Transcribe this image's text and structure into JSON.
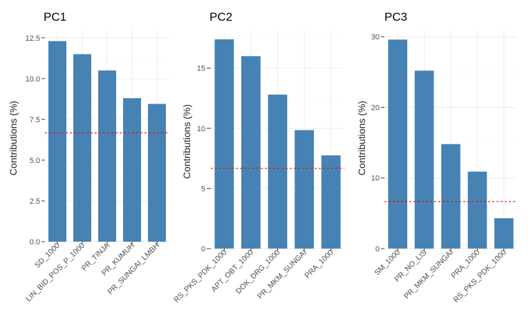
{
  "chart_data": [
    {
      "type": "bar",
      "title": "PC1",
      "ylabel": "Contributions (%)",
      "xlabel": "",
      "categories": [
        "SD_1000",
        "LIN_BID_POS_P_1000",
        "PR_TINJA",
        "PR_KUMUH",
        "PR_SUNGAI_LMBH"
      ],
      "values": [
        12.3,
        11.5,
        10.5,
        8.8,
        8.45
      ],
      "yticks": [
        "0.0",
        "2.5",
        "5.0",
        "7.5",
        "10.0",
        "12.5"
      ],
      "ylim": [
        0,
        13
      ],
      "reference_line": 6.67,
      "bar_color": "#4682b4",
      "line_color": "#ff0000"
    },
    {
      "type": "bar",
      "title": "PC2",
      "ylabel": "Contributions (%)",
      "xlabel": "",
      "categories": [
        "RS_PKS_PDK_1000",
        "APT_OBT_1000",
        "DOK_DRG_1000",
        "PR_MKM_SUNGAI",
        "PRA_1000"
      ],
      "values": [
        17.4,
        16.0,
        12.8,
        9.85,
        7.75
      ],
      "yticks": [
        "0",
        "5",
        "10",
        "15"
      ],
      "ylim": [
        0,
        18.2
      ],
      "reference_line": 6.67,
      "bar_color": "#4682b4",
      "line_color": "#ff0000"
    },
    {
      "type": "bar",
      "title": "PC3",
      "ylabel": "Contributions (%)",
      "xlabel": "",
      "categories": [
        "SM_1000",
        "PR_NO_LIS",
        "PR_MKM_SUNGAI",
        "PRA_1000",
        "RS_PKS_PDK_1000"
      ],
      "values": [
        29.6,
        25.2,
        14.8,
        10.9,
        4.3
      ],
      "yticks": [
        "0",
        "10",
        "20",
        "30"
      ],
      "ylim": [
        0,
        31
      ],
      "reference_line": 6.67,
      "bar_color": "#4682b4",
      "line_color": "#ff0000"
    }
  ]
}
